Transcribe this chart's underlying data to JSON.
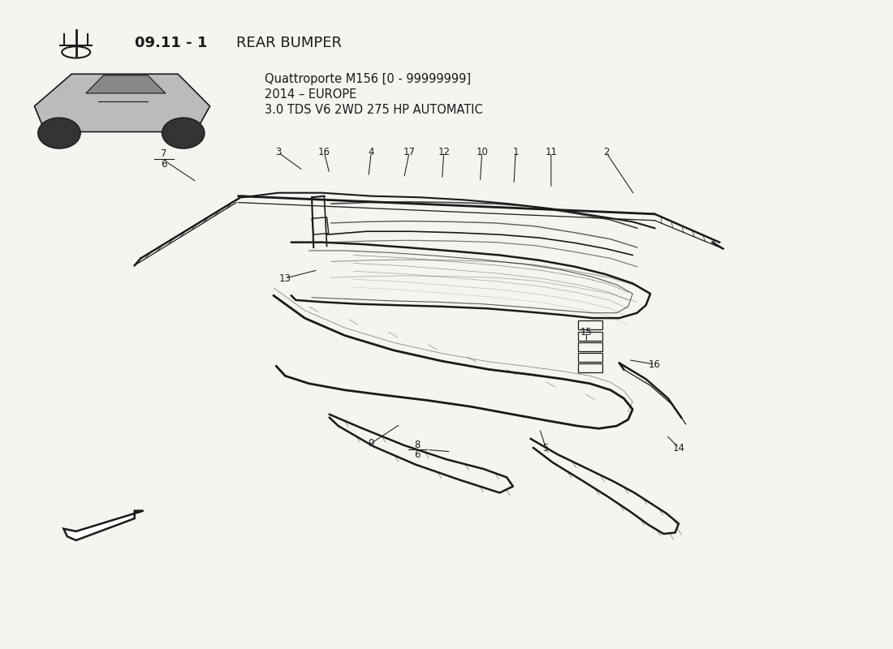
{
  "title_bold": "09.11 - 1",
  "title_regular": " REAR BUMPER",
  "subtitle_line1": "Quattroporte M156 [0 - 99999999]",
  "subtitle_line2": "2014 – EUROPE",
  "subtitle_line3": "3.0 TDS V6 2WD 275 HP AUTOMATIC",
  "bg_color": "#f5f5f0",
  "line_color": "#1a1a1a"
}
